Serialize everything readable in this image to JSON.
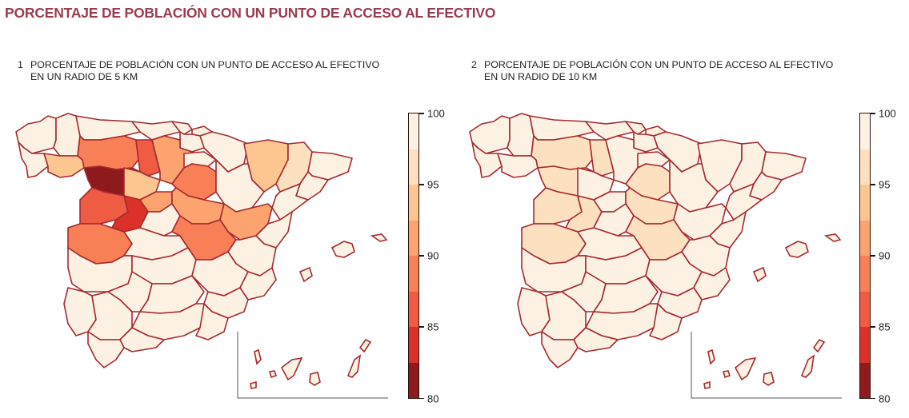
{
  "title": "PORCENTAJE DE POBLACIÓN CON UN PUNTO DE ACCESO AL EFECTIVO",
  "maps": [
    {
      "number": "1",
      "title_line1": "PORCENTAJE DE POBLACIÓN CON UN PUNTO DE ACCESO AL EFECTIVO",
      "title_line2": "EN UN RADIO DE 5 KM",
      "radius_km": 5
    },
    {
      "number": "2",
      "title_line1": "PORCENTAJE DE POBLACIÓN CON UN PUNTO DE ACCESO AL EFECTIVO",
      "title_line2": "EN UN RADIO DE 10 KM",
      "radius_km": 10
    }
  ],
  "legend": {
    "min": 80,
    "max": 100,
    "ticks": [
      "100",
      "95",
      "90",
      "85",
      "80"
    ],
    "bins": [
      "#fdf1e4",
      "#fde0c0",
      "#fdc690",
      "#fca36f",
      "#f87f56",
      "#f05b43",
      "#dc3128",
      "#8e1a1e"
    ],
    "border_color": "#a52a2f"
  },
  "colors": {
    "title": "#9b3b4e",
    "province_border": "#a52a2f",
    "c97": "#fdf1e4",
    "c95": "#fde0c0",
    "c93": "#fdc690",
    "c91": "#fca36f",
    "c89": "#f87f56",
    "c87": "#f05b43",
    "c84": "#dc3128",
    "c81": "#8e1a1e"
  },
  "chart_data": [
    {
      "type": "choropleth",
      "title": "PORCENTAJE DE POBLACIÓN CON UN PUNTO DE ACCESO AL EFECTIVO EN UN RADIO DE 5 KM",
      "scale": {
        "min": 80,
        "max": 100,
        "ticks": [
          80,
          85,
          90,
          95,
          100
        ]
      },
      "regions_approx": {
        "Zamora": 81,
        "Ávila": 84,
        "Salamanca": 87,
        "León": 89,
        "Palencia": 87,
        "Burgos": 91,
        "Soria": 89,
        "Segovia": 91,
        "Valladolid": 93,
        "Ourense": 93,
        "Cáceres": 89,
        "Guadalajara": 91,
        "Cuenca": 89,
        "Teruel": 91,
        "Huesca": 93,
        "Lleida": 95,
        "others": 98
      }
    },
    {
      "type": "choropleth",
      "title": "PORCENTAJE DE POBLACIÓN CON UN PUNTO DE ACCESO AL EFECTIVO EN UN RADIO DE 10 KM",
      "scale": {
        "min": 80,
        "max": 100,
        "ticks": [
          80,
          85,
          90,
          95,
          100
        ]
      },
      "regions_approx": {
        "León": 96,
        "Palencia": 96,
        "Zamora": 96,
        "Salamanca": 96,
        "Ávila": 96,
        "Cáceres": 96,
        "Soria": 96,
        "Guadalajara": 96,
        "Cuenca": 96,
        "others": 99
      }
    }
  ]
}
